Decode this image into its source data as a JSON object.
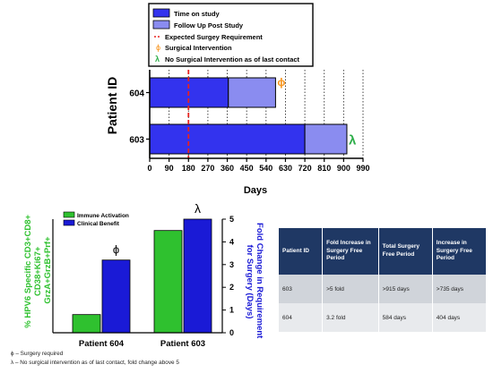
{
  "colors": {
    "time_on_study": "#3333ee",
    "follow_up": "#8a8cf0",
    "surgery_line": "#e8231f",
    "phi": "#f7941d",
    "lambda": "#2eae4a",
    "immune": "#2fc12f",
    "clinical": "#1a1ad6",
    "table_header": "#1f3864"
  },
  "legend": {
    "time_on_study": "Time on study",
    "follow_up": "Follow Up  Post Study",
    "expected_surgery": "Expected Surgey Requirement",
    "surgical_intervention": "Surgical Intervention",
    "no_surgical": "No Surgical Intervention as of last contact",
    "phi_symbol": "ϕ",
    "lambda_symbol": "λ"
  },
  "chart_data": [
    {
      "type": "bar",
      "orientation": "horizontal",
      "title": "",
      "xlabel": "Days",
      "ylabel": "Patient ID",
      "xlim": [
        0,
        990
      ],
      "x_ticks": [
        "0",
        "90",
        "180",
        "270",
        "360",
        "450",
        "540",
        "630",
        "720",
        "810",
        "900",
        "990"
      ],
      "categories": [
        "604",
        "603"
      ],
      "series": [
        {
          "name": "Time on study",
          "values": [
            365,
            720
          ]
        },
        {
          "name": "Follow Up  Post Study",
          "values": [
            219,
            195
          ]
        }
      ],
      "expected_surgery_day": 180,
      "markers": [
        {
          "category": "604",
          "symbol": "ϕ",
          "day": 584
        },
        {
          "category": "603",
          "symbol": "λ",
          "day": 915
        }
      ]
    },
    {
      "type": "bar",
      "title": "",
      "categories": [
        "Patient 604",
        "Patient 603"
      ],
      "ylabel_left": "% HPV6 Specific CD3+CD8+ CD38+Ki67+ GrzA+GrzB+Prf+",
      "ylabel_right": "Fold Change in Requirement for Surgery (Days)",
      "ylim_right": [
        0,
        5
      ],
      "right_ticks": [
        "0",
        "1",
        "2",
        "3",
        "4",
        "5"
      ],
      "series": [
        {
          "name": "Immune Activation",
          "values": [
            0.8,
            4.5
          ]
        },
        {
          "name": "Clinical Benefit",
          "values": [
            3.2,
            5.0
          ]
        }
      ],
      "markers": [
        {
          "category": "Patient 604",
          "symbol": "ϕ"
        },
        {
          "category": "Patient 603",
          "symbol": "λ"
        }
      ]
    }
  ],
  "table": {
    "headers": [
      "Patient ID",
      "Fold Increase in Surgery Free Period",
      "Total Surgery Free Period",
      "Increase in Surgery Free Period"
    ],
    "rows": [
      [
        "603",
        ">5 fold",
        ">915 days",
        ">735 days"
      ],
      [
        "604",
        "3.2 fold",
        "584 days",
        "404 days"
      ]
    ]
  },
  "footnotes": {
    "phi": "ϕ – Surgery required",
    "lambda": "λ – No surgical intervention as of last contact, fold change above 5"
  }
}
